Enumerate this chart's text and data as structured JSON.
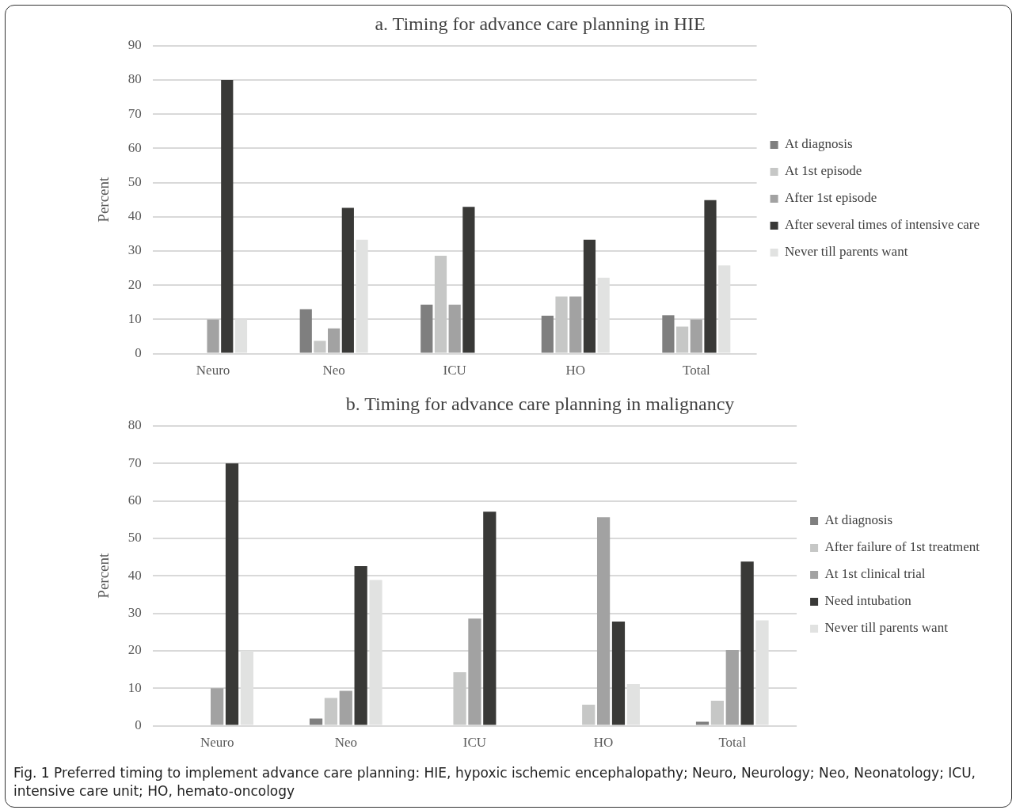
{
  "chart_data": [
    {
      "type": "bar",
      "title": "a. Timing for advance care planning in HIE",
      "ylabel": "Percent",
      "categories": [
        "Neuro",
        "Neo",
        "ICU",
        "HO",
        "Total"
      ],
      "ylim": [
        0,
        90
      ],
      "yticks": [
        0,
        10,
        20,
        30,
        40,
        50,
        60,
        70,
        80,
        90
      ],
      "grid": "y",
      "legend": "right",
      "series": [
        {
          "name": "At diagnosis",
          "color": "#7f7f7f",
          "values": [
            0,
            13,
            14.3,
            11.1,
            11.2
          ]
        },
        {
          "name": "At 1st episode",
          "color": "#c6c7c6",
          "values": [
            0,
            3.7,
            28.6,
            16.7,
            7.9
          ]
        },
        {
          "name": "After 1st episode",
          "color": "#a2a2a2",
          "values": [
            10,
            7.4,
            14.3,
            16.7,
            10
          ]
        },
        {
          "name": "After several times of intensive care",
          "color": "#393937",
          "values": [
            80,
            42.6,
            42.9,
            33.3,
            44.9
          ]
        },
        {
          "name": "Never till parents want",
          "color": "#e1e2e1",
          "values": [
            10,
            33.3,
            0,
            22.2,
            25.8
          ]
        }
      ]
    },
    {
      "type": "bar",
      "title": "b. Timing for advance care planning in malignancy",
      "ylabel": "Percent",
      "categories": [
        "Neuro",
        "Neo",
        "ICU",
        "HO",
        "Total"
      ],
      "ylim": [
        0,
        80
      ],
      "yticks": [
        0,
        10,
        20,
        30,
        40,
        50,
        60,
        70,
        80
      ],
      "grid": "y",
      "legend": "right",
      "annotations": [
        "Fig. 1 Preferred timing to implement advance care planning: HIE, hypoxic ischemic encephalopathy; Neuro, Neurology; Neo, Neonatology; ICU, intensive care unit; HO, hemato-oncology"
      ],
      "series": [
        {
          "name": "At diagnosis",
          "color": "#7f7f7f",
          "values": [
            0,
            1.9,
            0,
            0,
            1.1
          ]
        },
        {
          "name": "After failure of 1st treatment",
          "color": "#c6c7c6",
          "values": [
            0,
            7.4,
            14.3,
            5.6,
            6.7
          ]
        },
        {
          "name": "At 1st clinical trial",
          "color": "#a2a2a2",
          "values": [
            10,
            9.3,
            28.6,
            55.6,
            20.2
          ]
        },
        {
          "name": "Need intubation",
          "color": "#393937",
          "values": [
            70,
            42.6,
            57.1,
            27.8,
            43.8
          ]
        },
        {
          "name": "Never till parents want",
          "color": "#e1e2e1",
          "values": [
            20,
            38.9,
            0,
            11.1,
            28.1
          ]
        }
      ]
    }
  ]
}
